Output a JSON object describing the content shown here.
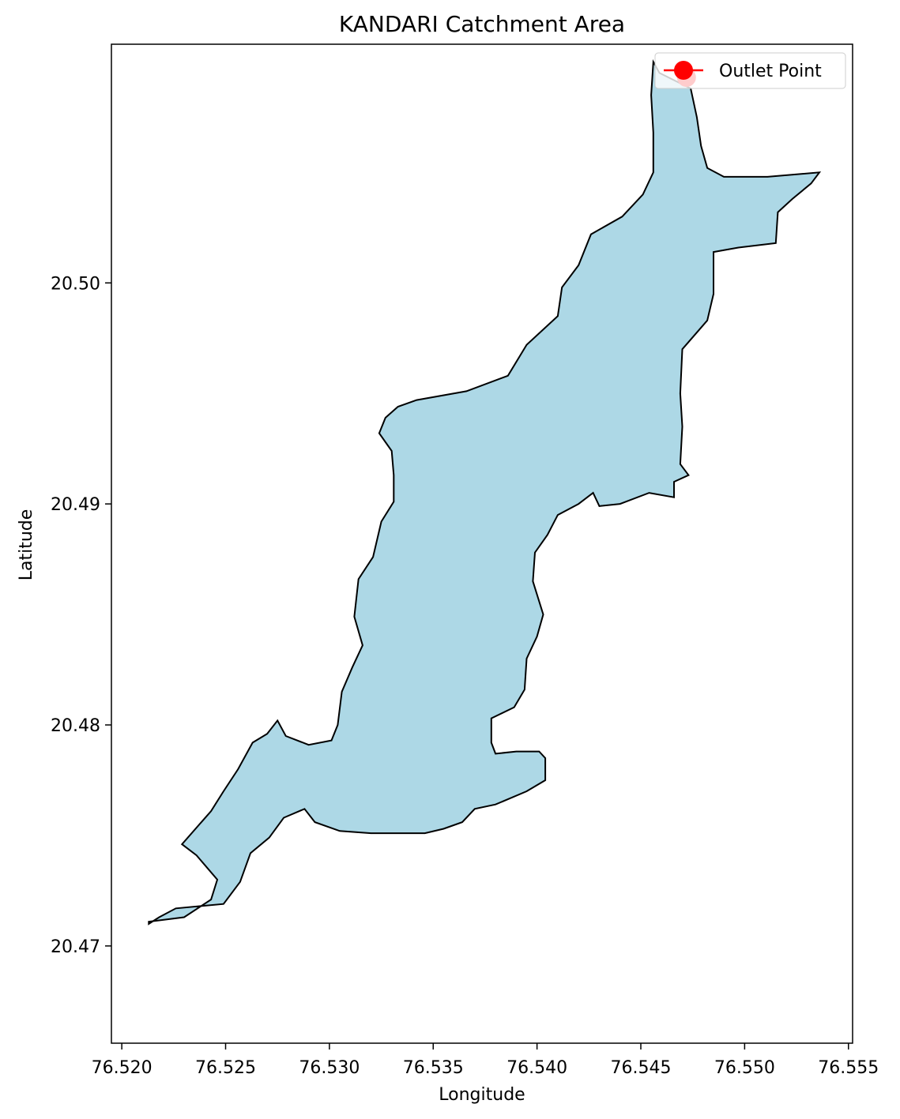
{
  "chart_data": {
    "type": "map",
    "title": "KANDARI Catchment Area",
    "xlabel": "Longitude",
    "ylabel": "Latitude",
    "xlim": [
      76.5195,
      76.5552
    ],
    "ylim": [
      20.4656,
      20.5108
    ],
    "xticks": [
      76.52,
      76.525,
      76.53,
      76.535,
      76.54,
      76.545,
      76.55,
      76.555
    ],
    "xtick_labels": [
      "76.520",
      "76.525",
      "76.530",
      "76.535",
      "76.540",
      "76.545",
      "76.550",
      "76.555"
    ],
    "yticks": [
      20.47,
      20.48,
      20.49,
      20.5
    ],
    "ytick_labels": [
      "20.47",
      "20.48",
      "20.49",
      "20.50"
    ],
    "grid": false,
    "legend": {
      "placement": "top-right",
      "entries": [
        {
          "label": "Outlet Point",
          "color": "#ff0000",
          "marker": "circle"
        }
      ]
    },
    "series": [
      {
        "name": "Outlet Point",
        "kind": "point",
        "color": "#ff0000",
        "points": [
          {
            "lon": 76.5472,
            "lat": 20.5093
          }
        ]
      },
      {
        "kind": "polygon",
        "fill": "#add8e6",
        "stroke": "#000000",
        "coordinates": [
          [
            76.5456,
            20.51
          ],
          [
            76.5459,
            20.5095
          ],
          [
            76.5474,
            20.5088
          ],
          [
            76.5477,
            20.5075
          ],
          [
            76.5479,
            20.5062
          ],
          [
            76.5482,
            20.5052
          ],
          [
            76.549,
            20.5048
          ],
          [
            76.5511,
            20.5048
          ],
          [
            76.5536,
            20.505
          ],
          [
            76.5532,
            20.5045
          ],
          [
            76.5523,
            20.5038
          ],
          [
            76.5516,
            20.5032
          ],
          [
            76.5515,
            20.5018
          ],
          [
            76.5497,
            20.5016
          ],
          [
            76.5485,
            20.5014
          ],
          [
            76.5485,
            20.4995
          ],
          [
            76.5482,
            20.4983
          ],
          [
            76.547,
            20.497
          ],
          [
            76.5469,
            20.495
          ],
          [
            76.547,
            20.4935
          ],
          [
            76.5469,
            20.4918
          ],
          [
            76.5473,
            20.4913
          ],
          [
            76.5466,
            20.491
          ],
          [
            76.5466,
            20.4903
          ],
          [
            76.5454,
            20.4905
          ],
          [
            76.544,
            20.49
          ],
          [
            76.543,
            20.4899
          ],
          [
            76.5427,
            20.4905
          ],
          [
            76.542,
            20.49
          ],
          [
            76.541,
            20.4895
          ],
          [
            76.5405,
            20.4886
          ],
          [
            76.5399,
            20.4878
          ],
          [
            76.5398,
            20.4865
          ],
          [
            76.5403,
            20.485
          ],
          [
            76.54,
            20.484
          ],
          [
            76.5395,
            20.483
          ],
          [
            76.5394,
            20.4816
          ],
          [
            76.5389,
            20.4808
          ],
          [
            76.5378,
            20.4803
          ],
          [
            76.5378,
            20.4792
          ],
          [
            76.538,
            20.4787
          ],
          [
            76.539,
            20.4788
          ],
          [
            76.5401,
            20.4788
          ],
          [
            76.5404,
            20.4785
          ],
          [
            76.5404,
            20.4775
          ],
          [
            76.5395,
            20.477
          ],
          [
            76.538,
            20.4764
          ],
          [
            76.537,
            20.4762
          ],
          [
            76.5364,
            20.4756
          ],
          [
            76.5355,
            20.4753
          ],
          [
            76.5346,
            20.4751
          ],
          [
            76.5339,
            20.4751
          ],
          [
            76.532,
            20.4751
          ],
          [
            76.5305,
            20.4752
          ],
          [
            76.5293,
            20.4756
          ],
          [
            76.5288,
            20.4762
          ],
          [
            76.5278,
            20.4758
          ],
          [
            76.5271,
            20.4749
          ],
          [
            76.5262,
            20.4742
          ],
          [
            76.5257,
            20.4729
          ],
          [
            76.5249,
            20.4719
          ],
          [
            76.5226,
            20.4717
          ],
          [
            76.5218,
            20.4713
          ],
          [
            76.5213,
            20.471
          ],
          [
            76.5213,
            20.4711
          ],
          [
            76.523,
            20.4713
          ],
          [
            76.5243,
            20.4721
          ],
          [
            76.5246,
            20.473
          ],
          [
            76.5236,
            20.4741
          ],
          [
            76.5229,
            20.4746
          ],
          [
            76.5243,
            20.4761
          ],
          [
            76.5249,
            20.477
          ],
          [
            76.5256,
            20.478
          ],
          [
            76.5263,
            20.4792
          ],
          [
            76.527,
            20.4796
          ],
          [
            76.5275,
            20.4802
          ],
          [
            76.5279,
            20.4795
          ],
          [
            76.529,
            20.4791
          ],
          [
            76.5301,
            20.4793
          ],
          [
            76.5304,
            20.48
          ],
          [
            76.5306,
            20.4815
          ],
          [
            76.5311,
            20.4826
          ],
          [
            76.5316,
            20.4836
          ],
          [
            76.5312,
            20.4849
          ],
          [
            76.5314,
            20.4866
          ],
          [
            76.5321,
            20.4876
          ],
          [
            76.5325,
            20.4892
          ],
          [
            76.5331,
            20.4901
          ],
          [
            76.5331,
            20.4913
          ],
          [
            76.533,
            20.4924
          ],
          [
            76.5324,
            20.4932
          ],
          [
            76.5327,
            20.4939
          ],
          [
            76.5333,
            20.4944
          ],
          [
            76.5342,
            20.4947
          ],
          [
            76.5366,
            20.4951
          ],
          [
            76.5386,
            20.4958
          ],
          [
            76.5395,
            20.4972
          ],
          [
            76.541,
            20.4985
          ],
          [
            76.5412,
            20.4998
          ],
          [
            76.542,
            20.5008
          ],
          [
            76.5426,
            20.5022
          ],
          [
            76.5441,
            20.503
          ],
          [
            76.5451,
            20.504
          ],
          [
            76.5456,
            20.505
          ],
          [
            76.5456,
            20.5068
          ],
          [
            76.5455,
            20.5085
          ],
          [
            76.5456,
            20.51
          ]
        ]
      }
    ]
  }
}
